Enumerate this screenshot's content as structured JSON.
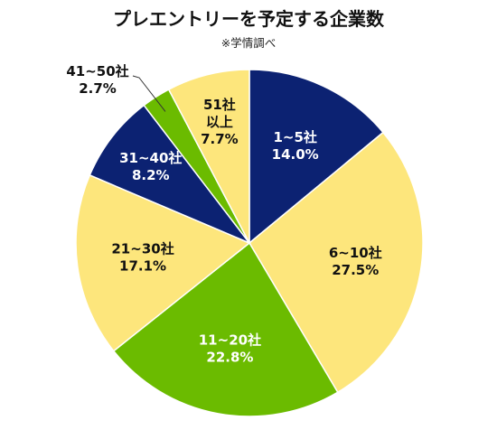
{
  "chart_data": {
    "type": "pie",
    "title": "プレエントリーを予定する企業数",
    "subtitle": "※学情調べ",
    "start_angle_deg": 0,
    "direction": "clockwise",
    "slices": [
      {
        "label": "1~5社",
        "value": 14.0,
        "percent_text": "14.0%",
        "color": "#0c2272",
        "text_color": "#ffffff"
      },
      {
        "label": "6~10社",
        "value": 27.5,
        "percent_text": "27.5%",
        "color": "#fde67c",
        "text_color": "#111111"
      },
      {
        "label": "11~20社",
        "value": 22.8,
        "percent_text": "22.8%",
        "color": "#6bbb00",
        "text_color": "#ffffff"
      },
      {
        "label": "21~30社",
        "value": 17.1,
        "percent_text": "17.1%",
        "color": "#fde67c",
        "text_color": "#111111"
      },
      {
        "label": "31~40社",
        "value": 8.2,
        "percent_text": "8.2%",
        "color": "#0c2272",
        "text_color": "#ffffff"
      },
      {
        "label": "41~50社",
        "value": 2.7,
        "percent_text": "2.7%",
        "color": "#6bbb00",
        "text_color": "#111111",
        "label_outside": true
      },
      {
        "label": "51社以上",
        "label_lines": [
          "51社",
          "以上"
        ],
        "value": 7.7,
        "percent_text": "7.7%",
        "color": "#fde67c",
        "text_color": "#111111"
      }
    ]
  }
}
